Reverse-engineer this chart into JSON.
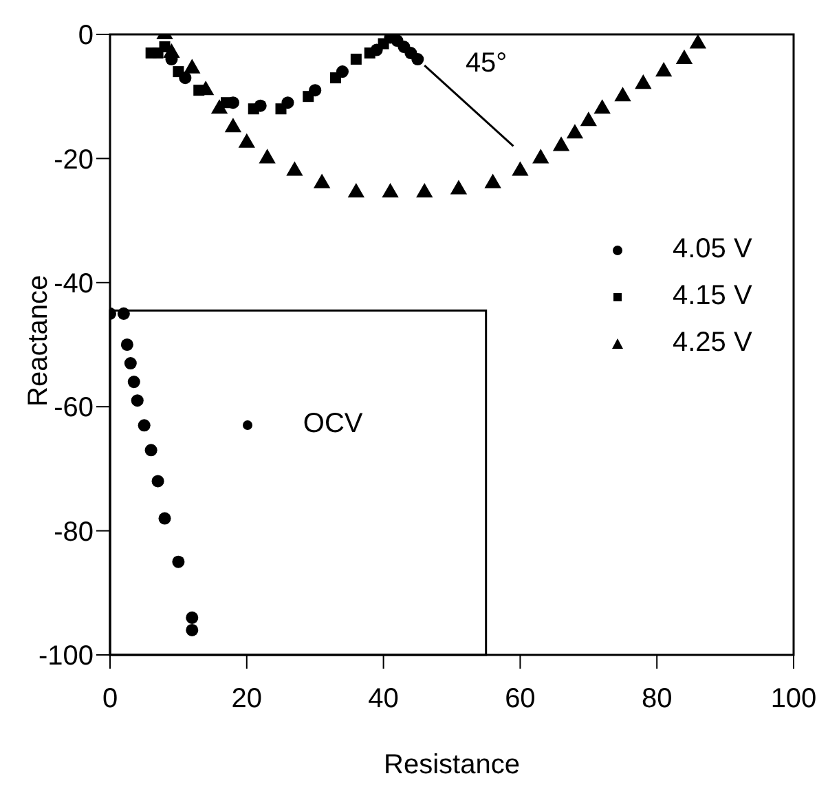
{
  "chart_data": {
    "type": "scatter",
    "xlabel": "Resistance",
    "ylabel": "Reactance",
    "xlim": [
      0,
      100
    ],
    "ylim": [
      -100,
      0
    ],
    "xticks": [
      0,
      20,
      40,
      60,
      80,
      100
    ],
    "yticks": [
      -100,
      -80,
      -60,
      -40,
      -20,
      0
    ],
    "grid": false,
    "legend": "right",
    "annotations": [
      "45°"
    ],
    "series": [
      {
        "name": "4.05 V",
        "color": "#000000",
        "marker": "circle",
        "x": [
          9,
          11,
          14,
          18,
          22,
          26,
          30,
          34,
          37,
          39,
          41,
          42,
          43,
          44,
          45
        ],
        "values": [
          -4,
          -7,
          null,
          -11,
          -11.5,
          -11,
          -9,
          -6,
          null,
          -2.5,
          -0.5,
          -1,
          -2,
          -3,
          -4
        ]
      },
      {
        "name": "4.15 V",
        "color": "#000000",
        "marker": "square",
        "x": [
          6,
          7,
          8,
          10,
          13,
          17,
          21,
          25,
          29,
          33,
          36,
          38,
          40
        ],
        "values": [
          -3,
          -3,
          -2,
          -6,
          -9,
          -11,
          -12,
          -12,
          -10,
          -7,
          -4,
          -3,
          -1.5
        ]
      },
      {
        "name": "4.25 V",
        "color": "#000000",
        "marker": "triangle",
        "x": [
          8,
          9,
          12,
          14,
          16,
          18,
          20,
          23,
          27,
          31,
          36,
          41,
          46,
          51,
          56,
          60,
          63,
          66,
          68,
          70,
          72,
          75,
          78,
          81,
          84,
          86
        ],
        "values": [
          0,
          -3,
          -5.5,
          -9,
          -12,
          -15,
          -17.5,
          -20,
          -22,
          -24,
          -25.5,
          -25.5,
          -25.5,
          -25,
          -24,
          -22,
          -20,
          -18,
          -16,
          -14,
          -12,
          -10,
          -8,
          -6,
          -4,
          -1.5
        ]
      },
      {
        "type": "line",
        "color": "#000000",
        "marker": "none",
        "x": [
          46,
          59
        ],
        "values": [
          -5,
          -18
        ]
      },
      {
        "name": "OCV",
        "color": "#000000",
        "marker": "circle",
        "x": [
          0,
          2,
          2.5,
          3,
          3.5,
          4,
          5,
          6,
          7,
          8,
          10,
          12,
          12
        ],
        "values": [
          -45,
          -45,
          -50,
          -53,
          -56,
          -59,
          -63,
          -67,
          -72,
          -78,
          -85,
          -94,
          -96
        ]
      }
    ]
  }
}
